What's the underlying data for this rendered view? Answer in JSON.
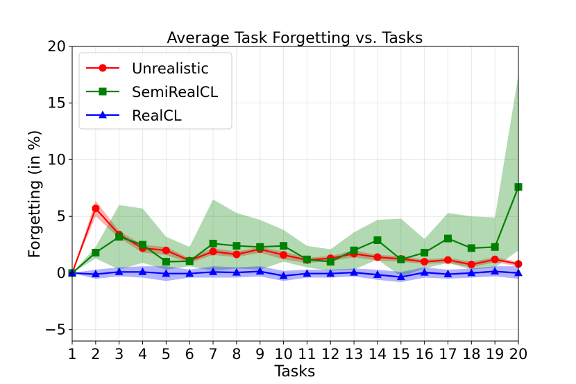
{
  "chart_data": {
    "type": "line",
    "title": "Average Task Forgetting vs. Tasks",
    "xlabel": "Tasks",
    "ylabel": "Forgetting (in %)",
    "x": [
      1,
      2,
      3,
      4,
      5,
      6,
      7,
      8,
      9,
      10,
      11,
      12,
      13,
      14,
      15,
      16,
      17,
      18,
      19,
      20
    ],
    "xlim": [
      1,
      20
    ],
    "ylim": [
      -6,
      20
    ],
    "yticks": [
      -5,
      0,
      5,
      10,
      15,
      20
    ],
    "grid": true,
    "legend_position": "upper-left",
    "series": [
      {
        "name": "Unrealistic",
        "color": "#ff0000",
        "marker": "circle",
        "values": [
          0,
          5.7,
          3.4,
          2.2,
          2.0,
          1.1,
          1.9,
          1.65,
          2.1,
          1.6,
          1.15,
          1.3,
          1.7,
          1.4,
          1.25,
          1.0,
          1.15,
          0.75,
          1.2,
          0.8
        ],
        "lower": [
          0,
          5.0,
          3.1,
          1.8,
          1.6,
          0.9,
          1.6,
          1.4,
          1.8,
          1.2,
          0.9,
          1.05,
          1.4,
          1.1,
          1.0,
          0.8,
          0.9,
          0.5,
          0.95,
          0.6
        ],
        "upper": [
          0,
          6.4,
          3.7,
          2.5,
          2.3,
          1.3,
          2.2,
          1.9,
          2.3,
          1.9,
          1.35,
          1.5,
          2.0,
          1.6,
          1.5,
          1.2,
          1.35,
          1.0,
          1.4,
          1.0
        ]
      },
      {
        "name": "SemiRealCL",
        "color": "#008000",
        "marker": "square",
        "values": [
          0,
          1.8,
          3.2,
          2.5,
          1.0,
          1.05,
          2.6,
          2.4,
          2.3,
          2.4,
          1.2,
          1.0,
          2.0,
          2.9,
          1.2,
          1.8,
          3.05,
          2.2,
          2.3,
          7.6
        ],
        "lower": [
          0,
          1.3,
          0.3,
          0.9,
          0.3,
          0.6,
          0.2,
          0.4,
          0.3,
          1.0,
          0.5,
          0.2,
          0.3,
          1.2,
          -0.3,
          0.4,
          0.9,
          0.3,
          0.5,
          2.0
        ],
        "upper": [
          0,
          2.3,
          6.0,
          5.7,
          3.2,
          2.3,
          6.5,
          5.3,
          4.7,
          3.8,
          2.4,
          2.1,
          3.6,
          4.7,
          4.8,
          3.0,
          5.3,
          5.0,
          4.9,
          17.5
        ]
      },
      {
        "name": "RealCL",
        "color": "#0000ff",
        "marker": "triangle",
        "values": [
          0,
          -0.1,
          0.1,
          0.1,
          -0.05,
          -0.05,
          0.1,
          0.05,
          0.15,
          -0.25,
          -0.05,
          -0.05,
          0.05,
          -0.15,
          -0.35,
          0.05,
          -0.1,
          0.0,
          0.15,
          0.0
        ],
        "lower": [
          0,
          -0.5,
          -0.3,
          -0.4,
          -0.7,
          -0.4,
          -0.4,
          -0.4,
          -0.3,
          -0.7,
          -0.4,
          -0.4,
          -0.3,
          -0.6,
          -0.8,
          -0.4,
          -0.5,
          -0.4,
          -0.3,
          -0.5
        ],
        "upper": [
          0,
          0.3,
          0.5,
          0.6,
          0.6,
          0.3,
          0.6,
          0.5,
          0.6,
          0.2,
          0.3,
          0.3,
          0.4,
          0.3,
          0.1,
          0.5,
          0.3,
          0.4,
          0.6,
          0.6
        ]
      }
    ]
  }
}
